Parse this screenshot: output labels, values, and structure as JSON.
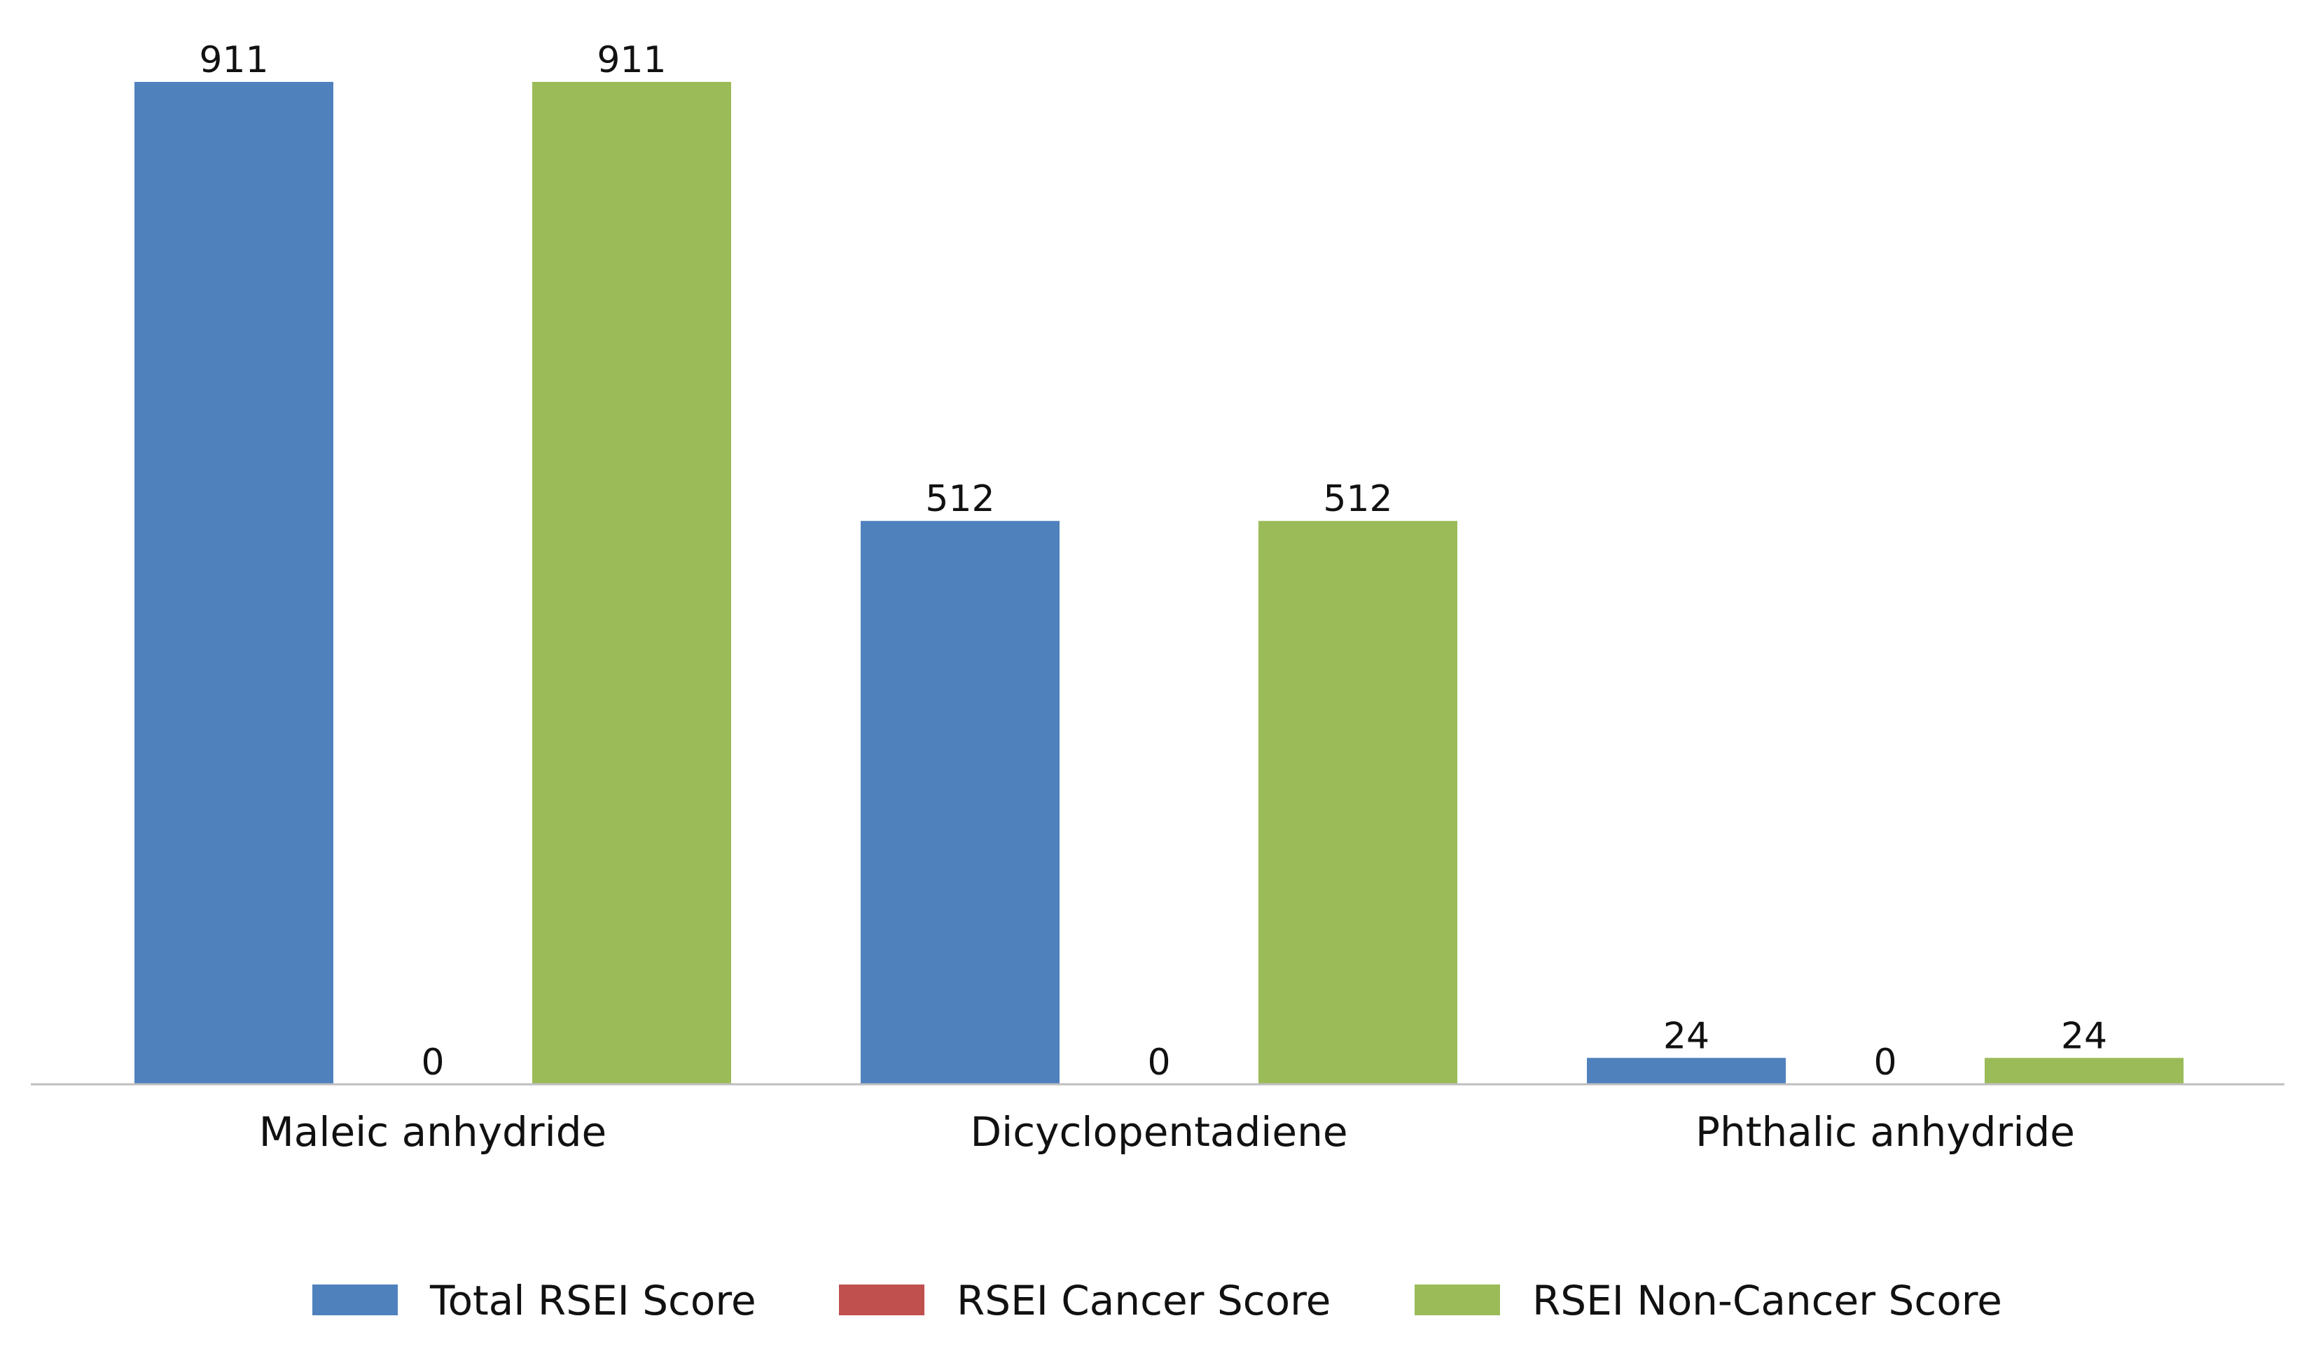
{
  "chart_data": {
    "type": "bar",
    "title": "",
    "xlabel": "",
    "ylabel": "",
    "categories": [
      "Maleic anhydride",
      "Dicyclopentadiene",
      "Phthalic anhydride"
    ],
    "series": [
      {
        "name": "Total RSEI Score",
        "values": [
          911,
          512,
          24
        ],
        "color": "#4F81BD"
      },
      {
        "name": "RSEI Cancer Score",
        "values": [
          0,
          0,
          0
        ],
        "color": "#C0504D"
      },
      {
        "name": "RSEI Non-Cancer Score",
        "values": [
          911,
          512,
          24
        ],
        "color": "#9BBB59"
      }
    ],
    "ylim": [
      0,
      911
    ],
    "grid": false,
    "y_axis_visible": false,
    "legend_position": "bottom"
  }
}
